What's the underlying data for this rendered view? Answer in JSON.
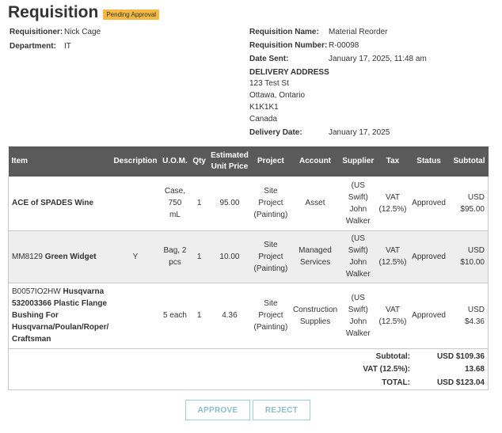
{
  "header": {
    "title": "Requisition",
    "status_badge": "Pending Approval",
    "status_badge_color": "#f5b942"
  },
  "info_left": {
    "requisitioner_label": "Requisitioner:",
    "requisitioner": "Nick Cage",
    "department_label": "Department:",
    "department": "IT"
  },
  "info_right": {
    "name_label": "Requisition Name:",
    "name": "Material Reorder",
    "number_label": "Requisition Number:",
    "number": "R-00098",
    "date_sent_label": "Date Sent:",
    "date_sent": "January 17, 2025, 11:48 am",
    "delivery_address_label": "DELIVERY ADDRESS",
    "address_line1": "123 Test St",
    "address_line2": "Ottawa, Ontario",
    "address_line3": "K1K1K1",
    "address_line4": "Canada",
    "delivery_date_label": "Delivery Date:",
    "delivery_date": "January 17, 2025"
  },
  "table": {
    "headers": {
      "item": "Item",
      "description": "Description",
      "uom": "U.O.M.",
      "qty": "Qty",
      "price_line1": "Estimated",
      "price_line2": "Unit Price",
      "project": "Project",
      "account": "Account",
      "supplier": "Supplier",
      "tax": "Tax",
      "status": "Status",
      "subtotal": "Subtotal"
    },
    "rows": [
      {
        "item_code": "",
        "item_name": "ACE of SPADES Wine",
        "description": "",
        "uom": "Case, 750 mL",
        "qty": "1",
        "price": "95.00",
        "project": "Site Project (Painting)",
        "account": "Asset",
        "supplier": "(US Swift) John Walker",
        "tax": "VAT (12.5%)",
        "status": "Approved",
        "subtotal": "USD $95.00"
      },
      {
        "item_code": "MM8129",
        "item_name": "Green Widget",
        "description": "Y",
        "uom": "Bag, 2 pcs",
        "qty": "1",
        "price": "10.00",
        "project": "Site Project (Painting)",
        "account": "Managed Services",
        "supplier": "(US Swift) John Walker",
        "tax": "VAT (12.5%)",
        "status": "Approved",
        "subtotal": "USD $10.00"
      },
      {
        "item_code": "B0057IO2HW",
        "item_name": "Husqvarna 532003366 Plastic Flange Bushing For Husqvarna/Poulan/Roper/ Craftsman",
        "description": "",
        "uom": "5 each",
        "qty": "1",
        "price": "4.36",
        "project": "Site Project (Painting)",
        "account": "Construction Supplies",
        "supplier": "(US Swift) John Walker",
        "tax": "VAT (12.5%)",
        "status": "Approved",
        "subtotal": "USD $4.36"
      }
    ]
  },
  "totals": {
    "subtotal_label": "Subtotal:",
    "subtotal": "USD $109.36",
    "vat_label": "VAT (12.5%):",
    "vat": "13.68",
    "total_label": "TOTAL:",
    "total": "USD $123.04"
  },
  "actions": {
    "approve_label": "APPROVE",
    "reject_label": "REJECT",
    "button_border_color": "#9bcfd9"
  }
}
